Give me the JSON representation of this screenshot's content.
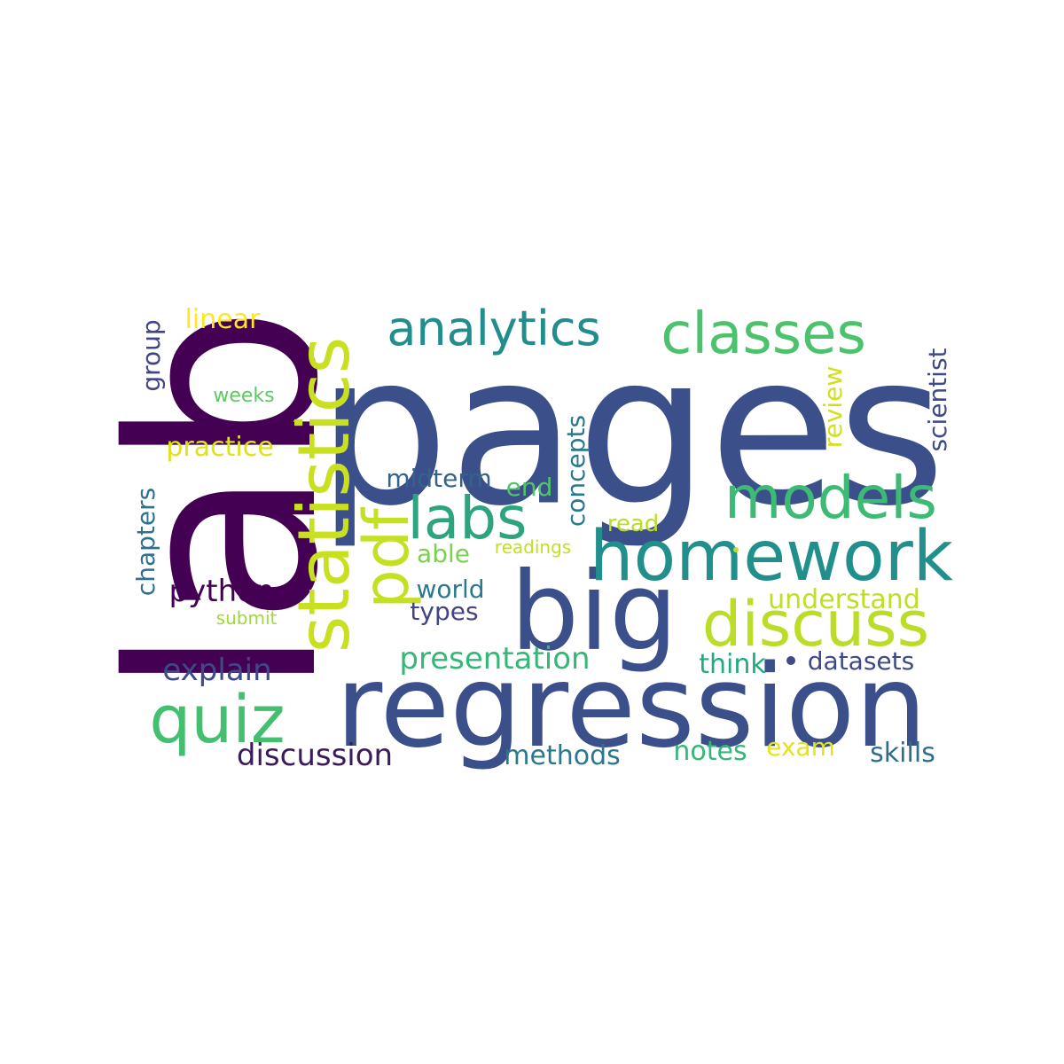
{
  "words": [
    {
      "text": "lab",
      "color": "#440154"
    },
    {
      "text": "pages",
      "color": "#3b4f8b"
    },
    {
      "text": "regression",
      "color": "#3b4f8b"
    },
    {
      "text": "big",
      "color": "#3b4f8b"
    },
    {
      "text": "homework",
      "color": "#21908d"
    },
    {
      "text": "statistics",
      "color": "#c8e020"
    },
    {
      "text": "analytics",
      "color": "#218e8d"
    },
    {
      "text": "classes",
      "color": "#4cc26c"
    },
    {
      "text": "models",
      "color": "#3dbb74"
    },
    {
      "text": "labs",
      "color": "#2ea37f"
    },
    {
      "text": "pdf",
      "color": "#c5df22"
    },
    {
      "text": "discuss",
      "color": "#bade28"
    },
    {
      "text": "quiz",
      "color": "#44bf70"
    },
    {
      "text": "presentation",
      "color": "#35b779"
    },
    {
      "text": "discussion",
      "color": "#3b1c5a"
    },
    {
      "text": "python",
      "color": "#440154"
    },
    {
      "text": "explain",
      "color": "#3e4989"
    },
    {
      "text": "methods",
      "color": "#2a788e"
    },
    {
      "text": "notes",
      "color": "#35b779"
    },
    {
      "text": "exam",
      "color": "#e5e419"
    },
    {
      "text": "skills",
      "color": "#2f6d8e"
    },
    {
      "text": "datasets",
      "color": "#3e4989"
    },
    {
      "text": "think",
      "color": "#23a983"
    },
    {
      "text": "understand",
      "color": "#bddf26"
    },
    {
      "text": "world",
      "color": "#2a788e"
    },
    {
      "text": "types",
      "color": "#414487"
    },
    {
      "text": "able",
      "color": "#7ad151"
    },
    {
      "text": "readings",
      "color": "#c2df23"
    },
    {
      "text": "read",
      "color": "#bade28"
    },
    {
      "text": "end",
      "color": "#52c569"
    },
    {
      "text": "midterm",
      "color": "#33638d"
    },
    {
      "text": "concepts",
      "color": "#2a788e"
    },
    {
      "text": "practice",
      "color": "#dde318"
    },
    {
      "text": "linear",
      "color": "#fde725"
    },
    {
      "text": "weeks",
      "color": "#5ec962"
    },
    {
      "text": "submit",
      "color": "#a0da39"
    },
    {
      "text": "group",
      "color": "#414487"
    },
    {
      "text": "chapters",
      "color": "#2c728e"
    },
    {
      "text": "review",
      "color": "#d0e11c"
    },
    {
      "text": "scientist",
      "color": "#3e4a89"
    }
  ],
  "dots": [
    {
      "color": "#3e4989"
    },
    {
      "color": "#bddf26"
    }
  ]
}
